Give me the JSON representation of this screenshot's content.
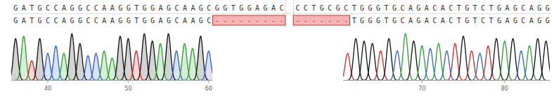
{
  "chart_data": {
    "type": "chromatogram",
    "reference": "GATGCCAGGCCAAGGTGGAGCAAGCGGTGGAGAC CCTGCGCTGGGTGCAGACACTGTCTGAGCAGG",
    "read": "GATGCCAGGCCAAGGTGGAGCAAGC--------- -------TGGGTGCAGACACTGTCTGAGCAGG",
    "ylim": [
      0,
      100
    ],
    "tick_labels": "x",
    "panels": [
      {
        "x": [
          36,
          37,
          38,
          39,
          40,
          41,
          42,
          43,
          44,
          45,
          46,
          47,
          48,
          49,
          50,
          51,
          52,
          53,
          54,
          55,
          56,
          57,
          58,
          59,
          60
        ],
        "values": [
          85,
          90,
          40,
          85,
          55,
          70,
          55,
          95,
          75,
          50,
          55,
          60,
          45,
          90,
          85,
          60,
          95,
          80,
          75,
          95,
          60,
          75,
          65,
          90,
          60
        ],
        "xlim": [
          35.5,
          60.5
        ],
        "xticks": [
          40,
          50,
          60
        ]
      },
      {
        "x": [
          61,
          62,
          63,
          64,
          65,
          66,
          67,
          68,
          69,
          70,
          71,
          72,
          73,
          74,
          75,
          76,
          77,
          78,
          79,
          80,
          81,
          82,
          83,
          84,
          85
        ],
        "values": [
          55,
          85,
          80,
          75,
          60,
          85,
          60,
          95,
          80,
          70,
          65,
          75,
          60,
          75,
          90,
          60,
          55,
          70,
          85,
          80,
          85,
          60,
          70,
          85,
          80
        ],
        "xlim": [
          60.5,
          85.5
        ],
        "xticks": [
          70,
          80
        ]
      }
    ]
  }
}
